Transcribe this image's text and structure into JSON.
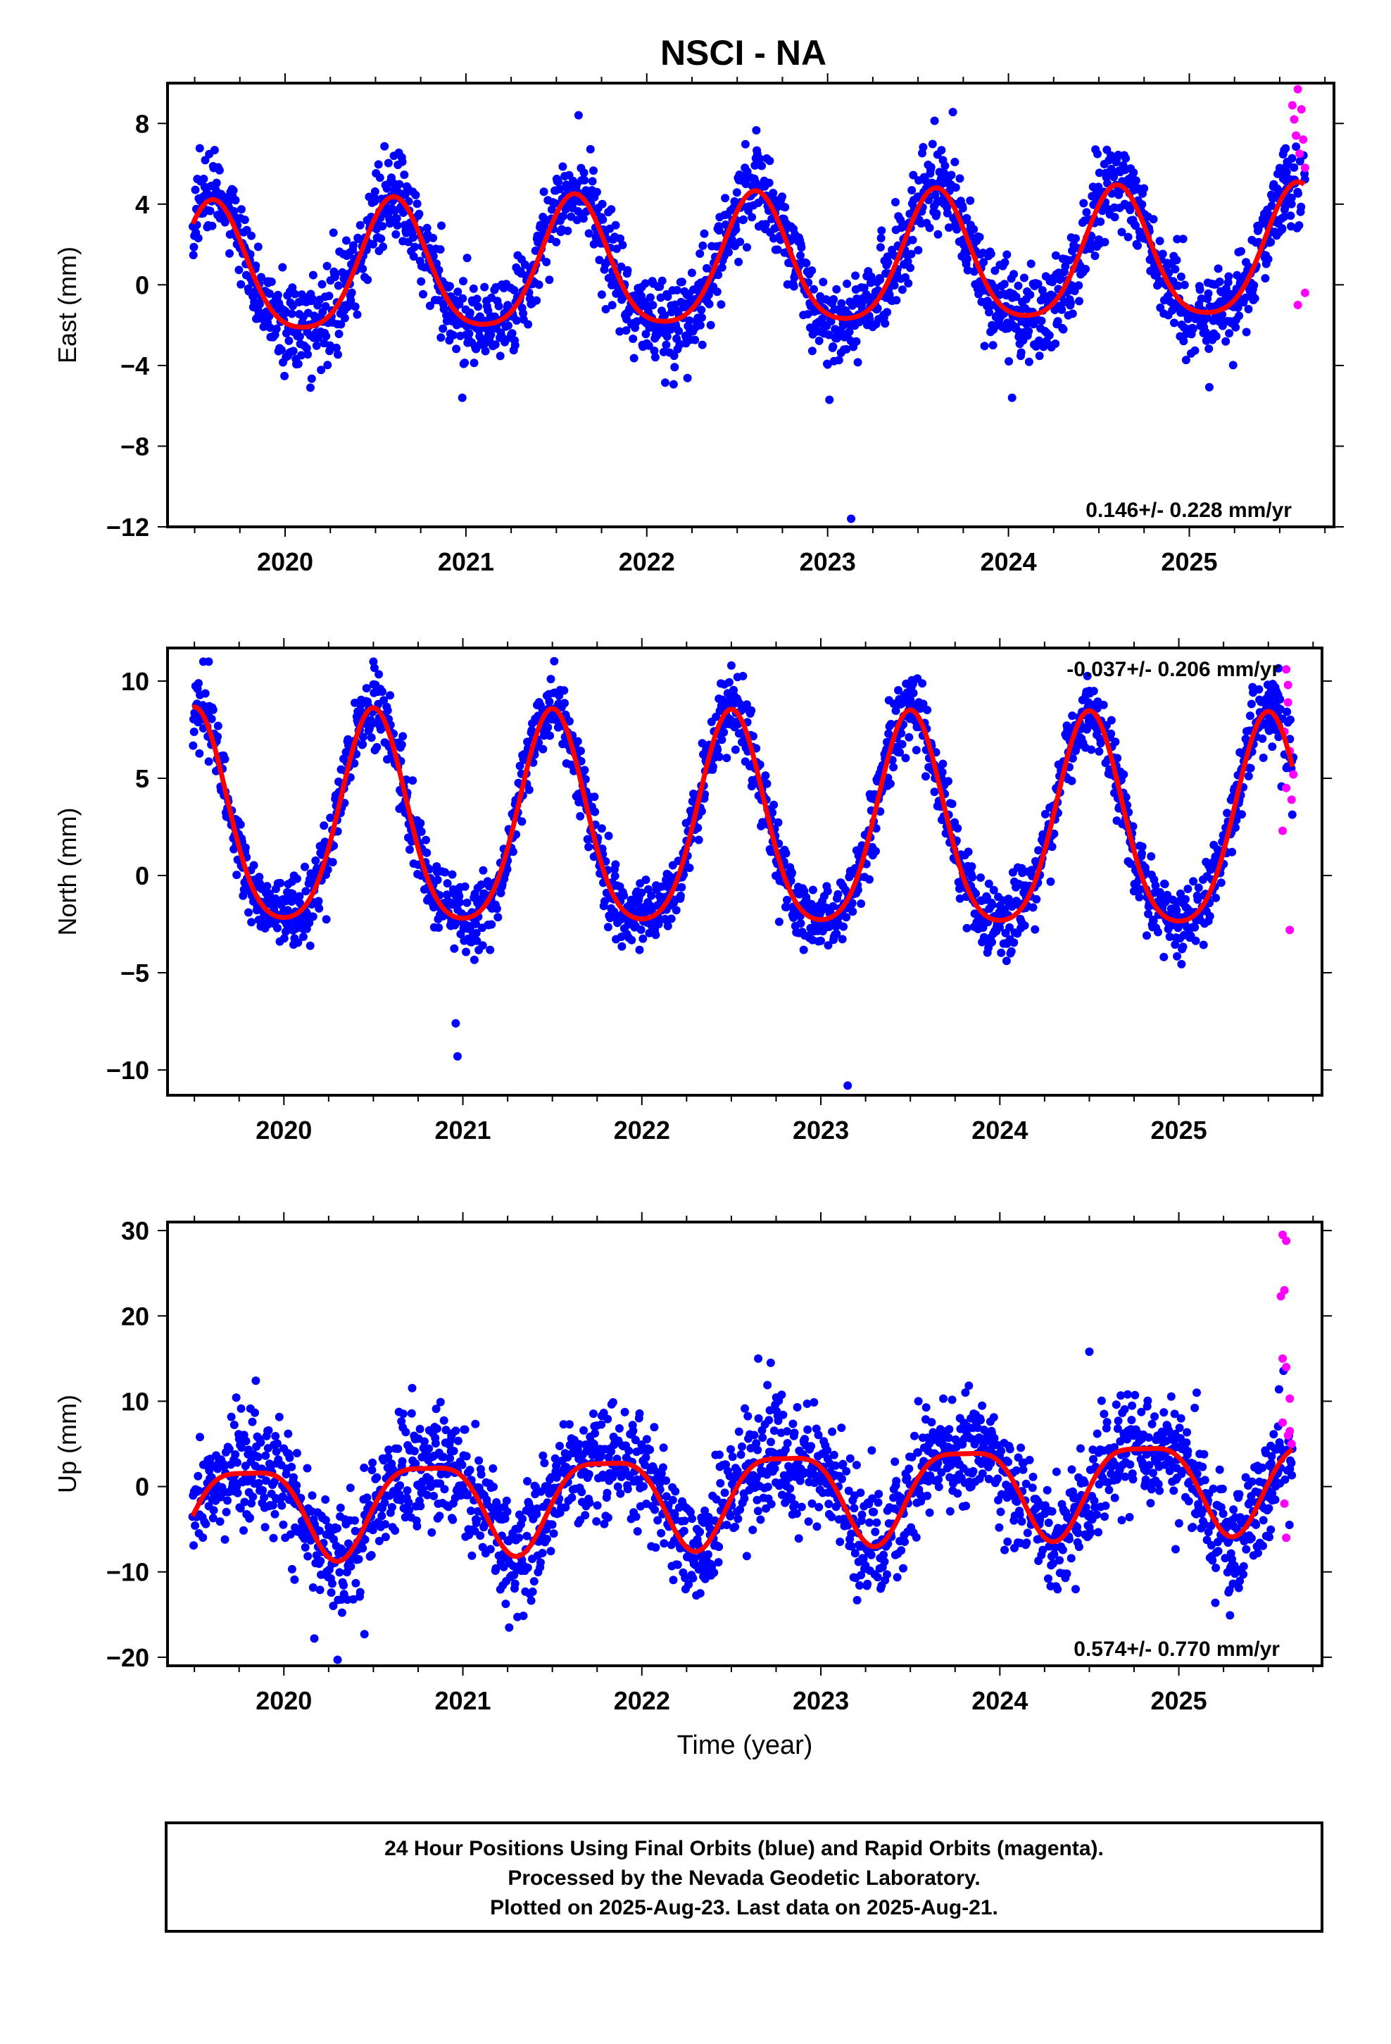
{
  "title": "NSCI - NA",
  "xlabel": "Time (year)",
  "footer": [
    "24 Hour Positions Using Final Orbits (blue) and Rapid Orbits (magenta).",
    "Processed by the Nevada Geodetic Laboratory.",
    "Plotted on 2025-Aug-23. Last data on 2025-Aug-21."
  ],
  "colors": {
    "final": "#0000ff",
    "rapid": "#ff00ff",
    "fit": "#ff0000"
  },
  "chart_data": [
    {
      "type": "scatter",
      "component": "East",
      "ylabel": "East (mm)",
      "xlim": [
        2019.35,
        2025.8
      ],
      "ylim": [
        -12,
        10
      ],
      "yticks": [
        -12,
        -8,
        -4,
        0,
        4,
        8
      ],
      "xticks": [
        2020,
        2021,
        2022,
        2023,
        2024,
        2025
      ],
      "rate": "0.146+/- 0.228 mm/yr",
      "model": {
        "mean": 0.9,
        "trend": 0.146,
        "annual": 3.2,
        "phase": 2019.6,
        "semi": 0.55,
        "semiPhase": 2019.6,
        "noise": 1.05,
        "rapidShift": 3.2
      },
      "outliers": [
        [
          2023.13,
          -11.6
        ],
        [
          2020.14,
          -5.1
        ],
        [
          2020.98,
          -5.6
        ],
        [
          2023.01,
          -5.7
        ],
        [
          2024.02,
          -5.6
        ]
      ],
      "rapid_points": [
        [
          2025.57,
          8.9
        ],
        [
          2025.58,
          8.2
        ],
        [
          2025.59,
          7.4
        ],
        [
          2025.6,
          9.7
        ],
        [
          2025.61,
          6.5
        ],
        [
          2025.62,
          8.7
        ],
        [
          2025.63,
          7.2
        ],
        [
          2025.64,
          5.8
        ],
        [
          2025.6,
          -1.0
        ],
        [
          2025.64,
          -0.4
        ]
      ]
    },
    {
      "type": "scatter",
      "component": "North",
      "ylabel": "North (mm)",
      "xlim": [
        2019.35,
        2025.8
      ],
      "ylim": [
        -11.3,
        11.7
      ],
      "yticks": [
        -10,
        -5,
        0,
        5,
        10
      ],
      "xticks": [
        2020,
        2021,
        2022,
        2023,
        2024,
        2025
      ],
      "rate": "-0.037+/- 0.206 mm/yr",
      "model": {
        "mean": 2.25,
        "trend": -0.037,
        "annual": 5.4,
        "phase": 2019.5,
        "semi": 0.9,
        "semiPhase": 2019.5,
        "noise": 0.95,
        "rapidShift": 2.0
      },
      "outliers": [
        [
          2023.15,
          -10.8
        ],
        [
          2020.97,
          -9.3
        ],
        [
          2020.96,
          -7.6
        ],
        [
          2019.55,
          11.0
        ],
        [
          2019.58,
          11.0
        ],
        [
          2020.5,
          11.0
        ],
        [
          2022.5,
          10.8
        ]
      ],
      "rapid_points": [
        [
          2025.6,
          10.6
        ],
        [
          2025.61,
          8.9
        ],
        [
          2025.59,
          7.4
        ],
        [
          2025.62,
          6.4
        ],
        [
          2025.6,
          4.5
        ],
        [
          2025.63,
          3.9
        ],
        [
          2025.58,
          2.3
        ],
        [
          2025.62,
          -2.8
        ],
        [
          2025.61,
          9.8
        ],
        [
          2025.64,
          5.2
        ]
      ]
    },
    {
      "type": "scatter",
      "component": "Up",
      "ylabel": "Up (mm)",
      "xlim": [
        2019.35,
        2025.8
      ],
      "ylim": [
        -21,
        31
      ],
      "yticks": [
        -20,
        -10,
        0,
        10,
        20,
        30
      ],
      "xticks": [
        2020,
        2021,
        2022,
        2023,
        2024,
        2025
      ],
      "rate": "0.574+/- 0.770 mm/yr",
      "model": {
        "mean": -0.8,
        "trend": 0.574,
        "annual": 5.3,
        "phase": 2019.8,
        "semi": 1.4,
        "semiPhase": 2019.55,
        "noise": 3.3,
        "rapidShift": 1.5
      },
      "outliers": [
        [
          2020.3,
          -20.3
        ],
        [
          2020.17,
          -17.8
        ],
        [
          2020.45,
          -17.3
        ],
        [
          2024.5,
          15.8
        ],
        [
          2022.65,
          15.0
        ],
        [
          2022.72,
          14.5
        ]
      ],
      "rapid_points": [
        [
          2025.58,
          29.5
        ],
        [
          2025.6,
          28.8
        ],
        [
          2025.59,
          23.0
        ],
        [
          2025.57,
          22.3
        ],
        [
          2025.58,
          15.0
        ],
        [
          2025.6,
          14.0
        ],
        [
          2025.62,
          10.3
        ],
        [
          2025.58,
          7.5
        ],
        [
          2025.61,
          6.0
        ],
        [
          2025.6,
          -6.0
        ],
        [
          2025.63,
          5.0
        ],
        [
          2025.59,
          -2.0
        ],
        [
          2025.62,
          6.5
        ]
      ]
    }
  ]
}
